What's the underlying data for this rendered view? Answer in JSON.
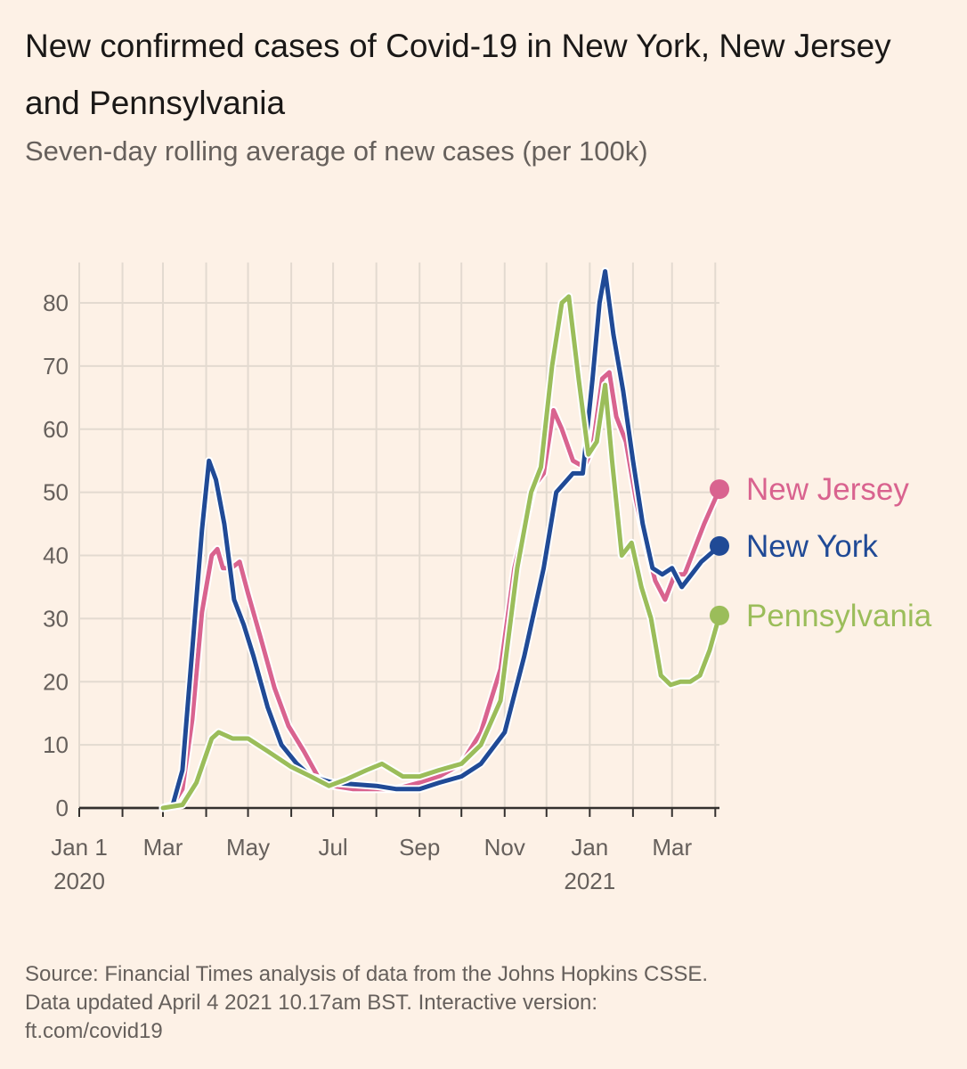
{
  "chart_data": {
    "type": "line",
    "title": "New confirmed cases of Covid-19 in New York, New Jersey and Pennsylvania",
    "subtitle": "Seven-day rolling average of new cases (per 100k)",
    "x_axis": {
      "start": "2020-01-01",
      "end": "2021-04-04",
      "ticks": [
        {
          "date": "2020-01-01",
          "label": "Jan 1",
          "sublabel": "2020"
        },
        {
          "date": "2020-03-01",
          "label": "Mar",
          "sublabel": ""
        },
        {
          "date": "2020-05-01",
          "label": "May",
          "sublabel": ""
        },
        {
          "date": "2020-07-01",
          "label": "Jul",
          "sublabel": ""
        },
        {
          "date": "2020-09-01",
          "label": "Sep",
          "sublabel": ""
        },
        {
          "date": "2020-11-01",
          "label": "Nov",
          "sublabel": ""
        },
        {
          "date": "2021-01-01",
          "label": "Jan",
          "sublabel": "2021"
        },
        {
          "date": "2021-03-01",
          "label": "Mar",
          "sublabel": ""
        }
      ]
    },
    "y_axis": {
      "ylim": [
        0,
        85
      ],
      "ticks": [
        0,
        10,
        20,
        30,
        40,
        50,
        60,
        70,
        80
      ]
    },
    "grid": true,
    "legend": "direct labels at line ends (right)",
    "series": [
      {
        "name": "New Jersey",
        "color": "#d9638f",
        "points": [
          [
            "2020-03-01",
            0
          ],
          [
            "2020-03-08",
            0.5
          ],
          [
            "2020-03-15",
            3
          ],
          [
            "2020-03-22",
            14
          ],
          [
            "2020-03-29",
            31
          ],
          [
            "2020-04-05",
            40
          ],
          [
            "2020-04-09",
            41
          ],
          [
            "2020-04-13",
            38
          ],
          [
            "2020-04-19",
            38
          ],
          [
            "2020-04-25",
            39
          ],
          [
            "2020-05-01",
            34
          ],
          [
            "2020-05-10",
            27
          ],
          [
            "2020-05-20",
            19
          ],
          [
            "2020-05-30",
            13
          ],
          [
            "2020-06-10",
            9
          ],
          [
            "2020-06-20",
            5
          ],
          [
            "2020-07-01",
            3.5
          ],
          [
            "2020-07-15",
            3
          ],
          [
            "2020-08-01",
            3
          ],
          [
            "2020-08-15",
            3
          ],
          [
            "2020-09-01",
            4
          ],
          [
            "2020-09-15",
            5
          ],
          [
            "2020-10-01",
            7
          ],
          [
            "2020-10-15",
            12
          ],
          [
            "2020-10-29",
            22
          ],
          [
            "2020-11-08",
            38
          ],
          [
            "2020-11-22",
            51
          ],
          [
            "2020-11-29",
            53
          ],
          [
            "2020-12-06",
            63
          ],
          [
            "2020-12-12",
            60
          ],
          [
            "2020-12-20",
            55
          ],
          [
            "2020-12-28",
            54
          ],
          [
            "2021-01-03",
            57
          ],
          [
            "2021-01-10",
            68
          ],
          [
            "2021-01-15",
            69
          ],
          [
            "2021-01-20",
            62
          ],
          [
            "2021-01-27",
            58
          ],
          [
            "2021-02-03",
            49
          ],
          [
            "2021-02-10",
            42
          ],
          [
            "2021-02-17",
            36
          ],
          [
            "2021-02-24",
            33
          ],
          [
            "2021-03-03",
            37
          ],
          [
            "2021-03-10",
            37
          ],
          [
            "2021-03-17",
            41
          ],
          [
            "2021-03-24",
            45
          ],
          [
            "2021-04-04",
            50.5
          ]
        ]
      },
      {
        "name": "New York",
        "color": "#204a96",
        "points": [
          [
            "2020-03-01",
            0
          ],
          [
            "2020-03-08",
            0.5
          ],
          [
            "2020-03-15",
            6
          ],
          [
            "2020-03-22",
            25
          ],
          [
            "2020-03-29",
            44
          ],
          [
            "2020-04-03",
            55
          ],
          [
            "2020-04-08",
            52
          ],
          [
            "2020-04-14",
            45
          ],
          [
            "2020-04-21",
            33
          ],
          [
            "2020-04-28",
            29
          ],
          [
            "2020-05-05",
            24
          ],
          [
            "2020-05-15",
            16
          ],
          [
            "2020-05-25",
            10
          ],
          [
            "2020-06-05",
            7
          ],
          [
            "2020-06-15",
            5
          ],
          [
            "2020-07-01",
            4
          ],
          [
            "2020-08-01",
            3.5
          ],
          [
            "2020-08-15",
            3
          ],
          [
            "2020-09-01",
            3
          ],
          [
            "2020-09-15",
            4
          ],
          [
            "2020-10-01",
            5
          ],
          [
            "2020-10-15",
            7
          ],
          [
            "2020-11-01",
            12
          ],
          [
            "2020-11-15",
            24
          ],
          [
            "2020-11-29",
            38
          ],
          [
            "2020-12-08",
            50
          ],
          [
            "2020-12-20",
            53
          ],
          [
            "2020-12-27",
            53
          ],
          [
            "2021-01-03",
            68
          ],
          [
            "2021-01-08",
            80
          ],
          [
            "2021-01-12",
            85
          ],
          [
            "2021-01-18",
            75
          ],
          [
            "2021-01-25",
            66
          ],
          [
            "2021-02-01",
            55
          ],
          [
            "2021-02-08",
            45
          ],
          [
            "2021-02-15",
            38
          ],
          [
            "2021-02-22",
            37
          ],
          [
            "2021-03-01",
            38
          ],
          [
            "2021-03-08",
            35
          ],
          [
            "2021-03-15",
            37
          ],
          [
            "2021-03-22",
            39
          ],
          [
            "2021-04-04",
            41.5
          ]
        ]
      },
      {
        "name": "Pennsylvania",
        "color": "#9bbd5a",
        "points": [
          [
            "2020-03-01",
            0
          ],
          [
            "2020-03-15",
            0.5
          ],
          [
            "2020-03-25",
            4
          ],
          [
            "2020-04-05",
            11
          ],
          [
            "2020-04-10",
            12
          ],
          [
            "2020-04-20",
            11
          ],
          [
            "2020-05-01",
            11
          ],
          [
            "2020-05-15",
            9
          ],
          [
            "2020-06-01",
            6.5
          ],
          [
            "2020-06-15",
            5
          ],
          [
            "2020-06-28",
            3.5
          ],
          [
            "2020-07-10",
            4.5
          ],
          [
            "2020-07-25",
            6
          ],
          [
            "2020-08-05",
            7
          ],
          [
            "2020-08-20",
            5
          ],
          [
            "2020-09-01",
            5
          ],
          [
            "2020-09-15",
            6
          ],
          [
            "2020-10-01",
            7
          ],
          [
            "2020-10-15",
            10
          ],
          [
            "2020-10-29",
            17
          ],
          [
            "2020-11-10",
            38
          ],
          [
            "2020-11-20",
            50
          ],
          [
            "2020-11-27",
            54
          ],
          [
            "2020-12-05",
            70
          ],
          [
            "2020-12-12",
            80
          ],
          [
            "2020-12-17",
            81
          ],
          [
            "2020-12-24",
            68
          ],
          [
            "2020-12-31",
            56
          ],
          [
            "2021-01-06",
            58
          ],
          [
            "2021-01-12",
            67
          ],
          [
            "2021-01-17",
            55
          ],
          [
            "2021-01-24",
            40
          ],
          [
            "2021-01-31",
            42
          ],
          [
            "2021-02-07",
            35
          ],
          [
            "2021-02-14",
            30
          ],
          [
            "2021-02-21",
            21
          ],
          [
            "2021-02-28",
            19.5
          ],
          [
            "2021-03-07",
            20
          ],
          [
            "2021-03-14",
            20
          ],
          [
            "2021-03-21",
            21
          ],
          [
            "2021-03-28",
            25
          ],
          [
            "2021-04-04",
            30.5
          ]
        ]
      }
    ]
  },
  "footer": {
    "source_lines": [
      "Source: Financial Times analysis of data from the Johns Hopkins CSSE.",
      "Data updated April 4 2021 10.17am BST. Interactive version:",
      "ft.com/covid19"
    ]
  },
  "colors": {
    "background": "#fdf1e6",
    "grid": "#e3dad0",
    "axis": "#33302e"
  }
}
